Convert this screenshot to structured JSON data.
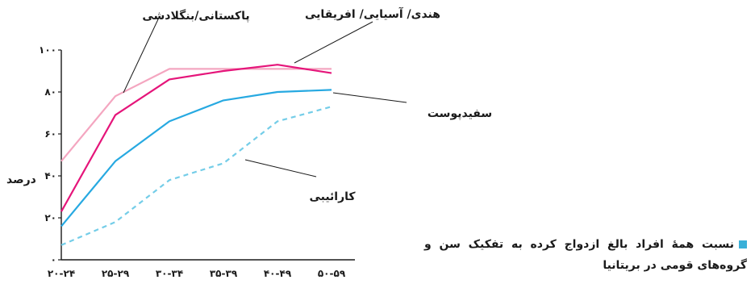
{
  "chart_data": {
    "type": "line",
    "categories": [
      "۲۰-۲۴",
      "۲۵-۲۹",
      "۳۰-۳۴",
      "۳۵-۳۹",
      "۴۰-۴۹",
      "۵۰-۵۹"
    ],
    "ylabel": "درصد",
    "ylim": [
      0,
      100
    ],
    "yticks": [
      "۰",
      "۲۰",
      "۴۰",
      "۶۰",
      "۸۰",
      "۱۰۰"
    ],
    "grid": false,
    "series": [
      {
        "name": "پاکستانی/بنگلادشی",
        "color": "#f4a6c0",
        "dash": false,
        "values": [
          47,
          78,
          91,
          91,
          91,
          91
        ]
      },
      {
        "name": "هندی/ آسیایی/ افریقایی",
        "color": "#e5157a",
        "dash": false,
        "values": [
          23,
          69,
          86,
          90,
          93,
          89
        ]
      },
      {
        "name": "سفیدپوست",
        "color": "#27a9e1",
        "dash": false,
        "values": [
          16,
          47,
          66,
          76,
          80,
          81
        ]
      },
      {
        "name": "کارائیبی",
        "color": "#74cde8",
        "dash": true,
        "values": [
          7,
          18,
          38,
          46,
          66,
          73
        ]
      }
    ]
  },
  "caption": "نسبت همهٔ افراد بالغ ازدواج کرده به تفکیک سن و گروه‌های قومی در بریتانیا"
}
